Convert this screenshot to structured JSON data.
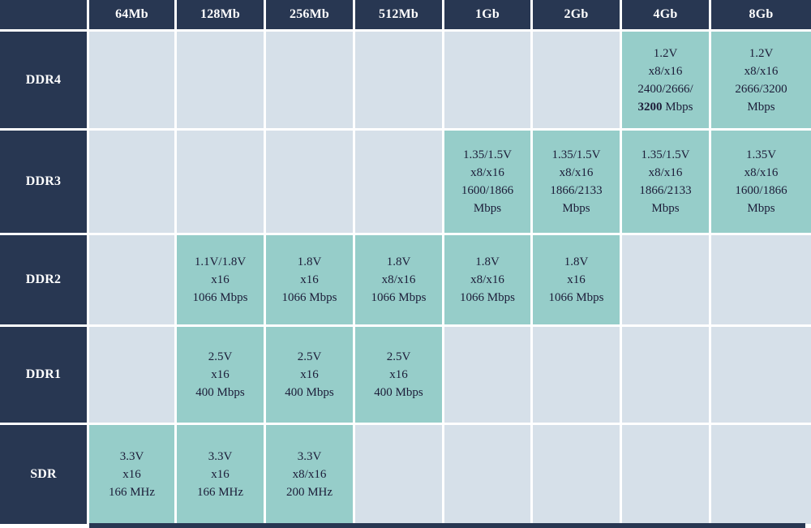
{
  "colors": {
    "header_bg": "#283752",
    "header_text": "#ffffff",
    "filled_bg": "#96cdc9",
    "empty_bg": "#d6e0e9",
    "cell_text": "#1c1c38",
    "gutter": "#ffffff"
  },
  "chart_data": {
    "type": "table",
    "corner_label": "",
    "columns": [
      "64Mb",
      "128Mb",
      "256Mb",
      "512Mb",
      "1Gb",
      "2Gb",
      "4Gb",
      "8Gb"
    ],
    "rows": [
      {
        "label": "DDR4",
        "cells": [
          null,
          null,
          null,
          null,
          null,
          null,
          {
            "lines": [
              "1.2V",
              "x8/x16",
              "2400/2666/",
              {
                "parts": [
                  {
                    "text": "3200",
                    "bold": true
                  },
                  {
                    "text": " Mbps",
                    "bold": false
                  }
                ]
              }
            ]
          },
          {
            "lines": [
              "1.2V",
              "x8/x16",
              "2666/3200",
              "Mbps"
            ]
          }
        ]
      },
      {
        "label": "DDR3",
        "cells": [
          null,
          null,
          null,
          null,
          {
            "lines": [
              "1.35/1.5V",
              "x8/x16",
              "1600/1866",
              "Mbps"
            ]
          },
          {
            "lines": [
              "1.35/1.5V",
              "x8/x16",
              "1866/2133",
              "Mbps"
            ]
          },
          {
            "lines": [
              "1.35/1.5V",
              "x8/x16",
              "1866/2133",
              "Mbps"
            ]
          },
          {
            "lines": [
              "1.35V",
              "x8/x16",
              "1600/1866",
              "Mbps"
            ]
          }
        ]
      },
      {
        "label": "DDR2",
        "cells": [
          null,
          {
            "lines": [
              "1.1V/1.8V",
              "x16",
              "1066 Mbps"
            ]
          },
          {
            "lines": [
              "1.8V",
              "x16",
              "1066 Mbps"
            ]
          },
          {
            "lines": [
              "1.8V",
              "x8/x16",
              "1066 Mbps"
            ]
          },
          {
            "lines": [
              "1.8V",
              "x8/x16",
              "1066 Mbps"
            ]
          },
          {
            "lines": [
              "1.8V",
              "x16",
              "1066 Mbps"
            ]
          },
          null,
          null
        ]
      },
      {
        "label": "DDR1",
        "cells": [
          null,
          {
            "lines": [
              "2.5V",
              "x16",
              "400 Mbps"
            ]
          },
          {
            "lines": [
              "2.5V",
              "x16",
              "400 Mbps"
            ]
          },
          {
            "lines": [
              "2.5V",
              "x16",
              "400 Mbps"
            ]
          },
          null,
          null,
          null,
          null
        ]
      },
      {
        "label": "SDR",
        "cells": [
          {
            "lines": [
              "3.3V",
              "x16",
              "166 MHz"
            ]
          },
          {
            "lines": [
              "3.3V",
              "x16",
              "166 MHz"
            ]
          },
          {
            "lines": [
              "3.3V",
              "x8/x16",
              "200 MHz"
            ]
          },
          null,
          null,
          null,
          null,
          null
        ]
      }
    ]
  }
}
